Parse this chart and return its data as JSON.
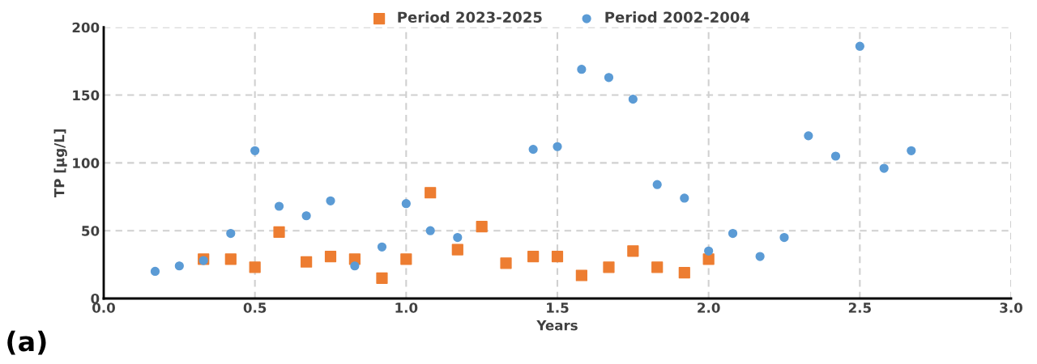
{
  "chart_data": {
    "type": "scatter",
    "xlabel": "Years",
    "ylabel": "TP [µg/L]",
    "annotations": [
      "(a)"
    ],
    "series": [
      {
        "name": "Period 2023-2025",
        "color": "#ed7d31",
        "marker": "square",
        "x": [
          0.33,
          0.42,
          0.5,
          0.58,
          0.67,
          0.75,
          0.83,
          0.92,
          1.0,
          1.08,
          1.17,
          1.25,
          1.33,
          1.42,
          1.5,
          1.58,
          1.67,
          1.75,
          1.83,
          1.92,
          2.0
        ],
        "values": [
          29,
          29,
          23,
          49,
          27,
          31,
          29,
          15,
          29,
          78,
          36,
          53,
          26,
          31,
          31,
          17,
          23,
          35,
          23,
          19,
          29
        ]
      },
      {
        "name": "Period 2002-2004",
        "color": "#5b9bd5",
        "marker": "circle",
        "x": [
          0.17,
          0.25,
          0.33,
          0.42,
          0.5,
          0.58,
          0.67,
          0.75,
          0.83,
          0.92,
          1.0,
          1.08,
          1.17,
          1.42,
          1.5,
          1.58,
          1.67,
          1.75,
          1.83,
          1.92,
          2.0,
          2.08,
          2.17,
          2.25,
          2.33,
          2.42,
          2.5,
          2.58,
          2.67
        ],
        "values": [
          20,
          24,
          28,
          48,
          109,
          68,
          61,
          72,
          24,
          38,
          70,
          50,
          45,
          110,
          112,
          169,
          163,
          147,
          84,
          74,
          35,
          48,
          31,
          45,
          120,
          105,
          186,
          96,
          109
        ]
      }
    ],
    "xlim": [
      0,
      3
    ],
    "xticks": [
      {
        "value": 0,
        "label": "0.0"
      },
      0.5,
      {
        "value": 1,
        "label": "1.0"
      },
      1.5,
      {
        "value": 2,
        "label": "2.0"
      },
      2.5,
      {
        "value": 3,
        "label": "3.0"
      }
    ],
    "ylim": [
      0,
      200
    ],
    "yticks": [
      0,
      50,
      100,
      150,
      200
    ],
    "grid": true,
    "legend": "top"
  }
}
